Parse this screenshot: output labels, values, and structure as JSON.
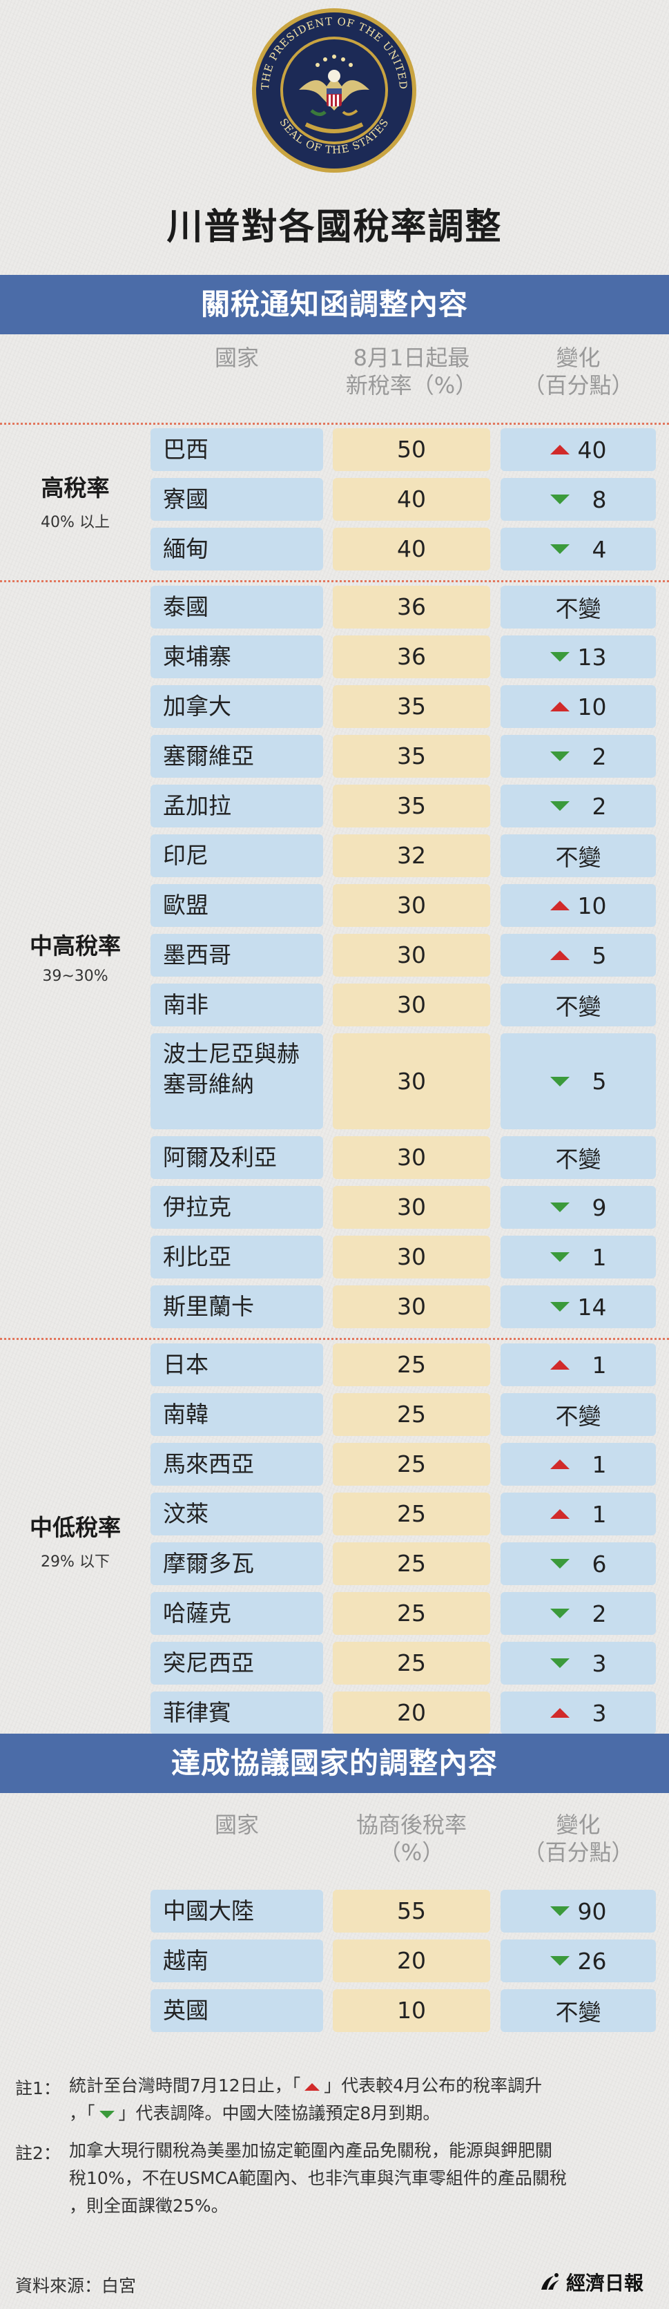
{
  "seal": {
    "ring_text_top": "THE PRESIDENT OF THE UNITED",
    "ring_text_bottom": "SEAL OF THE STATES"
  },
  "title": "川普對各國稅率調整",
  "section1": {
    "banner": "關稅通知函調整內容",
    "col_country": "國家",
    "col_rate_line1": "8月1日起最",
    "col_rate_line2": "新稅率（%）",
    "col_change_line1": "變化",
    "col_change_line2": "（百分點）",
    "groups": [
      {
        "title": "高稅率",
        "subtitle": "40% 以上",
        "rows": [
          {
            "country": "巴西",
            "rate": "50",
            "dir": "up",
            "change": "40"
          },
          {
            "country": "寮國",
            "rate": "40",
            "dir": "down",
            "change": "8"
          },
          {
            "country": "緬甸",
            "rate": "40",
            "dir": "down",
            "change": "4"
          }
        ]
      },
      {
        "title": "中高稅率",
        "subtitle": "39~30%",
        "rows": [
          {
            "country": "泰國",
            "rate": "36",
            "dir": "none",
            "change": "不變"
          },
          {
            "country": "柬埔寨",
            "rate": "36",
            "dir": "down",
            "change": "13"
          },
          {
            "country": "加拿大",
            "rate": "35",
            "dir": "up",
            "change": "10"
          },
          {
            "country": "塞爾維亞",
            "rate": "35",
            "dir": "down",
            "change": "2"
          },
          {
            "country": "孟加拉",
            "rate": "35",
            "dir": "down",
            "change": "2"
          },
          {
            "country": "印尼",
            "rate": "32",
            "dir": "none",
            "change": "不變"
          },
          {
            "country": "歐盟",
            "rate": "30",
            "dir": "up",
            "change": "10"
          },
          {
            "country": "墨西哥",
            "rate": "30",
            "dir": "up",
            "change": "5"
          },
          {
            "country": "南非",
            "rate": "30",
            "dir": "none",
            "change": "不變"
          },
          {
            "country": "波士尼亞與赫",
            "country2": "塞哥維納",
            "rate": "30",
            "dir": "down",
            "change": "5"
          },
          {
            "country": "阿爾及利亞",
            "rate": "30",
            "dir": "none",
            "change": "不變"
          },
          {
            "country": "伊拉克",
            "rate": "30",
            "dir": "down",
            "change": "9"
          },
          {
            "country": "利比亞",
            "rate": "30",
            "dir": "down",
            "change": "1"
          },
          {
            "country": "斯里蘭卡",
            "rate": "30",
            "dir": "down",
            "change": "14"
          }
        ]
      },
      {
        "title": "中低稅率",
        "subtitle": "29% 以下",
        "rows": [
          {
            "country": "日本",
            "rate": "25",
            "dir": "up",
            "change": "1"
          },
          {
            "country": "南韓",
            "rate": "25",
            "dir": "none",
            "change": "不變"
          },
          {
            "country": "馬來西亞",
            "rate": "25",
            "dir": "up",
            "change": "1"
          },
          {
            "country": "汶萊",
            "rate": "25",
            "dir": "up",
            "change": "1"
          },
          {
            "country": "摩爾多瓦",
            "rate": "25",
            "dir": "down",
            "change": "6"
          },
          {
            "country": "哈薩克",
            "rate": "25",
            "dir": "down",
            "change": "2"
          },
          {
            "country": "突尼西亞",
            "rate": "25",
            "dir": "down",
            "change": "3"
          },
          {
            "country": "菲律賓",
            "rate": "20",
            "dir": "up",
            "change": "3"
          }
        ]
      }
    ]
  },
  "section2": {
    "banner": "達成協議國家的調整內容",
    "col_country": "國家",
    "col_rate_line1": "協商後稅率",
    "col_rate_line2": "（%）",
    "col_change_line1": "變化",
    "col_change_line2": "（百分點）",
    "rows": [
      {
        "country": "中國大陸",
        "rate": "55",
        "dir": "down",
        "change": "90"
      },
      {
        "country": "越南",
        "rate": "20",
        "dir": "down",
        "change": "26"
      },
      {
        "country": "英國",
        "rate": "10",
        "dir": "none",
        "change": "不變"
      }
    ]
  },
  "notes": {
    "note1_label": "註1：",
    "note1_a": "統計至台灣時間7月12日止，「",
    "note1_b": "」代表較4月公布的稅率調升",
    "note1_c": "，「",
    "note1_d": "」代表調降。中國大陸協議預定8月到期。",
    "note2_label": "註2：",
    "note2_line1": "加拿大現行關稅為美墨加協定範圍內產品免關稅，能源與鉀肥關",
    "note2_line2": "稅10%，不在USMCA範圍內、也非汽車與汽車零組件的產品關稅",
    "note2_line3": "，則全面課徵25%。"
  },
  "source": "資料來源：白宮",
  "brand": "經濟日報",
  "colors": {
    "banner": "#4b6ca8",
    "cell_blue": "#c7ddee",
    "cell_yellow": "#f3e3bb",
    "up": "#d12a2a",
    "down": "#3b9a3b",
    "separator": "#e2765c"
  }
}
